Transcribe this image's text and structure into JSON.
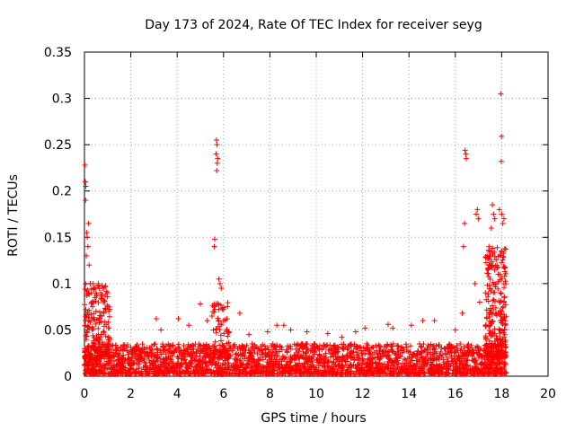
{
  "chart_data": {
    "type": "scatter",
    "title": "Day 173 of 2024, Rate Of TEC Index for receiver seyg",
    "xlabel": "GPS time / hours",
    "ylabel": "ROTI / TECUs",
    "xlim": [
      0,
      20
    ],
    "ylim": [
      0,
      0.35
    ],
    "x_ticks": [
      0,
      2,
      4,
      6,
      8,
      10,
      12,
      14,
      16,
      18,
      20
    ],
    "x_tick_labels": [
      "0",
      "2",
      "4",
      "6",
      "8",
      "10",
      "12",
      "14",
      "16",
      "18",
      "20"
    ],
    "y_ticks": [
      0,
      0.05,
      0.1,
      0.15,
      0.2,
      0.25,
      0.3,
      0.35
    ],
    "y_tick_labels": [
      "0",
      "0.05",
      "0.1",
      "0.15",
      "0.2",
      "0.25",
      "0.3",
      "0.35"
    ],
    "grid": true,
    "marker": "+",
    "color": "#ff0000",
    "series": [
      {
        "name": "ROTI",
        "points": [
          [
            0.02,
            0.228
          ],
          [
            0.04,
            0.21
          ],
          [
            0.06,
            0.205
          ],
          [
            0.05,
            0.19
          ],
          [
            0.1,
            0.155
          ],
          [
            0.12,
            0.15
          ],
          [
            0.18,
            0.165
          ],
          [
            0.15,
            0.14
          ],
          [
            0.08,
            0.13
          ],
          [
            0.2,
            0.12
          ],
          [
            0.25,
            0.1
          ],
          [
            0.3,
            0.09
          ],
          [
            0.45,
            0.085
          ],
          [
            0.6,
            0.1
          ],
          [
            0.7,
            0.09
          ],
          [
            0.8,
            0.095
          ],
          [
            0.9,
            0.088
          ],
          [
            1.0,
            0.09
          ],
          [
            1.05,
            0.07
          ],
          [
            0.5,
            0.07
          ],
          [
            0.35,
            0.075
          ],
          [
            0.65,
            0.06
          ],
          [
            0.75,
            0.065
          ],
          [
            3.1,
            0.062
          ],
          [
            3.3,
            0.05
          ],
          [
            4.05,
            0.062
          ],
          [
            4.5,
            0.055
          ],
          [
            5.0,
            0.078
          ],
          [
            5.3,
            0.06
          ],
          [
            5.5,
            0.065
          ],
          [
            5.6,
            0.14
          ],
          [
            5.62,
            0.148
          ],
          [
            5.7,
            0.255
          ],
          [
            5.72,
            0.25
          ],
          [
            5.68,
            0.24
          ],
          [
            5.75,
            0.235
          ],
          [
            5.73,
            0.23
          ],
          [
            5.71,
            0.222
          ],
          [
            5.8,
            0.105
          ],
          [
            5.85,
            0.1
          ],
          [
            5.9,
            0.095
          ],
          [
            6.0,
            0.06
          ],
          [
            6.7,
            0.068
          ],
          [
            7.1,
            0.045
          ],
          [
            7.9,
            0.048
          ],
          [
            8.3,
            0.055
          ],
          [
            8.6,
            0.055
          ],
          [
            8.9,
            0.05
          ],
          [
            9.6,
            0.048
          ],
          [
            10.5,
            0.046
          ],
          [
            11.1,
            0.042
          ],
          [
            11.7,
            0.048
          ],
          [
            12.1,
            0.052
          ],
          [
            13.1,
            0.056
          ],
          [
            13.3,
            0.052
          ],
          [
            14.1,
            0.055
          ],
          [
            14.6,
            0.06
          ],
          [
            15.1,
            0.06
          ],
          [
            16.0,
            0.05
          ],
          [
            16.3,
            0.068
          ],
          [
            16.42,
            0.244
          ],
          [
            16.45,
            0.24
          ],
          [
            16.47,
            0.235
          ],
          [
            16.4,
            0.165
          ],
          [
            16.35,
            0.14
          ],
          [
            16.9,
            0.175
          ],
          [
            16.95,
            0.18
          ],
          [
            17.0,
            0.17
          ],
          [
            16.85,
            0.1
          ],
          [
            17.05,
            0.08
          ],
          [
            17.3,
            0.09
          ],
          [
            17.6,
            0.185
          ],
          [
            17.65,
            0.175
          ],
          [
            17.55,
            0.16
          ],
          [
            17.7,
            0.17
          ],
          [
            17.5,
            0.13
          ],
          [
            17.45,
            0.14
          ],
          [
            17.96,
            0.305
          ],
          [
            17.99,
            0.259
          ],
          [
            17.98,
            0.232
          ],
          [
            17.9,
            0.18
          ],
          [
            18.0,
            0.175
          ],
          [
            18.05,
            0.165
          ],
          [
            18.1,
            0.17
          ],
          [
            17.8,
            0.12
          ],
          [
            17.85,
            0.11
          ],
          [
            17.75,
            0.1
          ],
          [
            17.95,
            0.09
          ],
          [
            18.1,
            0.08
          ],
          [
            18.0,
            0.07
          ],
          [
            18.15,
            0.06
          ]
        ]
      }
    ],
    "background_band": {
      "description": "dense noise floor",
      "x_range": [
        0,
        18.2
      ],
      "typical_max": 0.035,
      "typical_min": 0.002
    }
  }
}
